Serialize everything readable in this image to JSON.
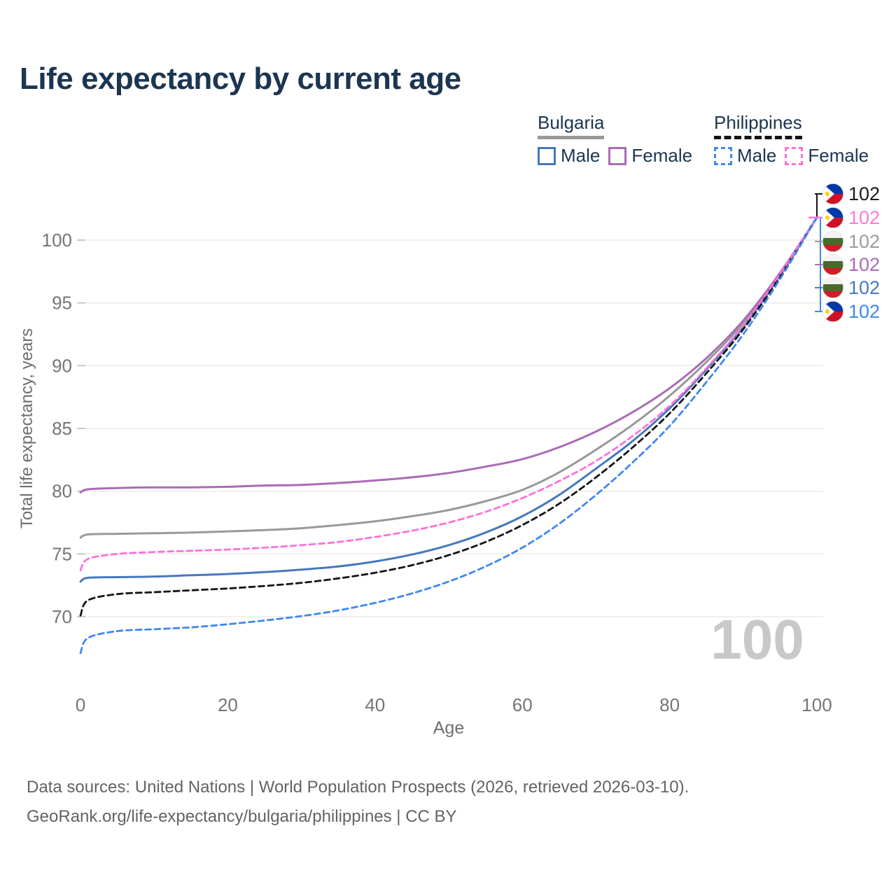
{
  "title": "Life expectancy by current age",
  "legend": {
    "groups": [
      {
        "label": "Bulgaria",
        "swatch_style": "solid",
        "swatch_color": "#999999",
        "items": [
          {
            "label": "Male",
            "color": "#4678bd",
            "style": "solid"
          },
          {
            "label": "Female",
            "color": "#a96cb4",
            "style": "solid"
          }
        ]
      },
      {
        "label": "Philippines",
        "swatch_style": "dashed",
        "swatch_color": "#141414",
        "items": [
          {
            "label": "Male",
            "color": "#3f87f0",
            "style": "dashed"
          },
          {
            "label": "Female",
            "color": "#ff70d8",
            "style": "dashed"
          }
        ]
      }
    ]
  },
  "footer": {
    "line1": "Data sources: United Nations | World Population Prospects (2026, retrieved 2026-03-10).",
    "line2": "GeoRank.org/life-expectancy/bulgaria/philippines | CC BY"
  },
  "chart_data": {
    "type": "line",
    "xlabel": "Age",
    "ylabel": "Total life expectancy, years",
    "x_ticks": [
      0,
      20,
      40,
      60,
      80,
      100
    ],
    "y_ticks": [
      70,
      75,
      80,
      85,
      90,
      95,
      100
    ],
    "xlim": [
      0,
      100
    ],
    "ylim": [
      66.5,
      103
    ],
    "grid": "horizontal",
    "current_age_watermark": "100",
    "ages": [
      0,
      1,
      5,
      10,
      15,
      20,
      25,
      30,
      35,
      40,
      45,
      50,
      55,
      60,
      65,
      70,
      75,
      80,
      85,
      90,
      95,
      100
    ],
    "series": [
      {
        "id": "bg_total",
        "name": "Bulgaria (both sexes)",
        "country": "Bulgaria",
        "flag": "bg",
        "color": "#999999",
        "dashed": false,
        "values": [
          76.3,
          76.55,
          76.6,
          76.65,
          76.7,
          76.8,
          76.9,
          77.05,
          77.3,
          77.6,
          78.0,
          78.5,
          79.2,
          80.1,
          81.5,
          83.3,
          85.3,
          87.6,
          90.3,
          93.4,
          97.3,
          101.8
        ]
      },
      {
        "id": "bg_female",
        "name": "Bulgaria Female",
        "country": "Bulgaria",
        "flag": "bg",
        "color": "#a96cb4",
        "dashed": false,
        "values": [
          79.9,
          80.15,
          80.25,
          80.3,
          80.3,
          80.35,
          80.45,
          80.5,
          80.65,
          80.85,
          81.1,
          81.45,
          81.95,
          82.55,
          83.5,
          84.75,
          86.3,
          88.2,
          90.6,
          93.6,
          97.4,
          101.8
        ]
      },
      {
        "id": "bg_male",
        "name": "Bulgaria Male",
        "country": "Bulgaria",
        "flag": "bg",
        "color": "#4678bd",
        "dashed": false,
        "values": [
          72.8,
          73.1,
          73.15,
          73.2,
          73.3,
          73.4,
          73.55,
          73.75,
          74.0,
          74.4,
          74.95,
          75.7,
          76.7,
          78.0,
          79.7,
          81.8,
          84.0,
          86.6,
          89.7,
          93.1,
          97.2,
          101.8
        ]
      },
      {
        "id": "ph_total",
        "name": "Philippines (both sexes)",
        "country": "Philippines",
        "flag": "ph",
        "color": "#141414",
        "dashed": true,
        "values": [
          70.1,
          71.3,
          71.8,
          71.95,
          72.1,
          72.25,
          72.45,
          72.7,
          73.05,
          73.5,
          74.1,
          74.9,
          75.95,
          77.3,
          79.0,
          81.1,
          83.5,
          86.2,
          89.4,
          92.9,
          97.1,
          101.8
        ]
      },
      {
        "id": "ph_female",
        "name": "Philippines Female",
        "country": "Philippines",
        "flag": "ph",
        "color": "#ff70d8",
        "dashed": true,
        "values": [
          73.7,
          74.6,
          75.0,
          75.15,
          75.25,
          75.35,
          75.5,
          75.7,
          75.95,
          76.35,
          76.85,
          77.5,
          78.35,
          79.45,
          80.8,
          82.4,
          84.4,
          86.8,
          89.8,
          93.2,
          97.3,
          101.8
        ]
      },
      {
        "id": "ph_male",
        "name": "Philippines Male",
        "country": "Philippines",
        "flag": "ph",
        "color": "#3f87f0",
        "dashed": true,
        "values": [
          67.1,
          68.3,
          68.85,
          69.0,
          69.15,
          69.4,
          69.7,
          70.05,
          70.5,
          71.1,
          71.85,
          72.8,
          74.0,
          75.5,
          77.4,
          79.7,
          82.3,
          85.2,
          88.7,
          92.5,
          96.9,
          101.8
        ]
      }
    ],
    "end_labels": [
      {
        "series": "ph_total",
        "flag": "ph",
        "label": "102",
        "color": "#1a1a1a"
      },
      {
        "series": "ph_female",
        "flag": "ph",
        "label": "102",
        "color": "#ff7ad6"
      },
      {
        "series": "bg_total",
        "flag": "bg",
        "label": "102",
        "color": "#9b9b9b"
      },
      {
        "series": "bg_female",
        "flag": "bg",
        "label": "102",
        "color": "#a96cb4"
      },
      {
        "series": "bg_male",
        "flag": "bg",
        "label": "102",
        "color": "#4678bd"
      },
      {
        "series": "ph_male",
        "flag": "ph",
        "label": "102",
        "color": "#3f87f0"
      }
    ],
    "flag_colors": {
      "ph": {
        "blue": "#0038a8",
        "red": "#ce1126",
        "white": "#ffffff",
        "sun": "#fcd116"
      },
      "bg": {
        "white": "#f3f3f3",
        "green": "#486b2b",
        "red": "#d01c28"
      }
    }
  }
}
